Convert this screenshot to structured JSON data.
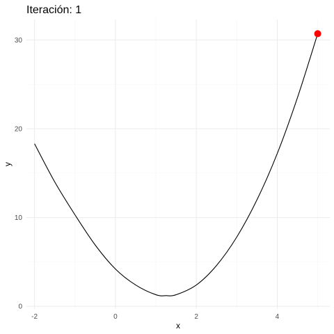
{
  "chart_data": {
    "type": "line",
    "title": "Iteración: 1",
    "xlabel": "x",
    "ylabel": "y",
    "xlim": [
      -2.2,
      5.3
    ],
    "ylim": [
      -0.3,
      32.3
    ],
    "x_ticks": [
      -2,
      0,
      2,
      4
    ],
    "x_tick_labels": [
      "-2",
      "0",
      "2",
      "4"
    ],
    "y_ticks": [
      0,
      10,
      20,
      30
    ],
    "y_tick_labels": [
      "0",
      "10",
      "20",
      "30"
    ],
    "grid": true,
    "legend": "none",
    "series": [
      {
        "color": "#000000",
        "x": [
          -2,
          -1.5,
          -1,
          -0.5,
          0,
          0.5,
          1,
          1.25,
          1.5,
          2,
          2.5,
          3,
          3.5,
          4,
          4.5,
          5
        ],
        "y": [
          18.3,
          14.0,
          10.3,
          6.9,
          4.2,
          2.4,
          1.3,
          1.2,
          1.3,
          2.4,
          4.6,
          7.8,
          12.0,
          17.2,
          23.5,
          30.7
        ]
      }
    ],
    "highlight_point": {
      "x": 5,
      "y": 30.7,
      "color": "#ff0000"
    }
  }
}
